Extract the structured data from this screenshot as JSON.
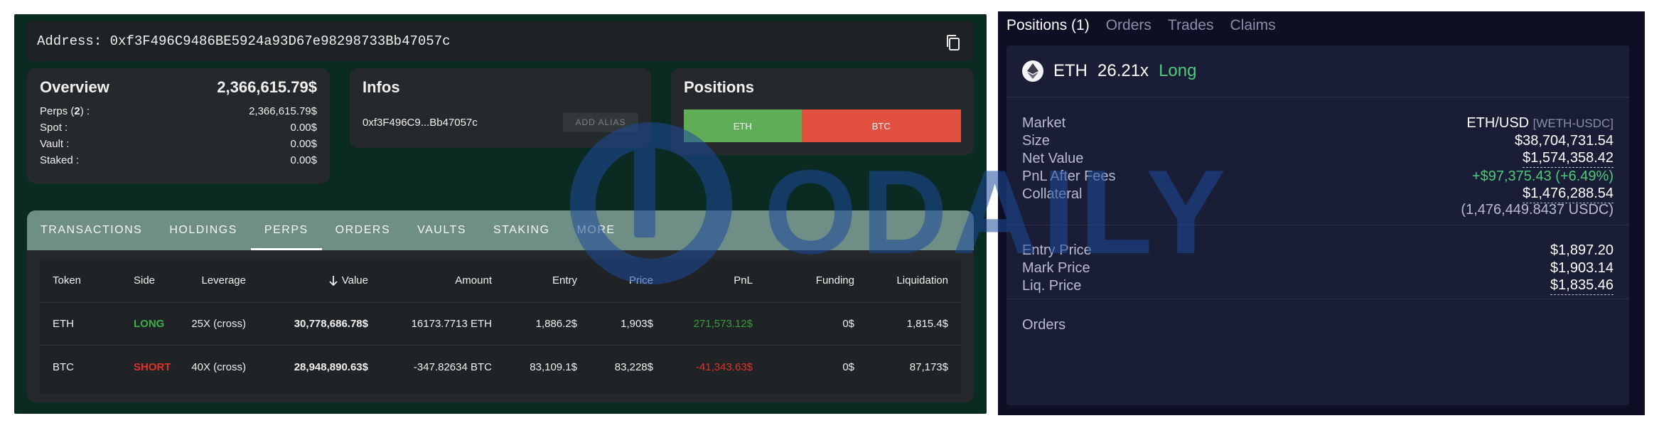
{
  "left": {
    "address_label": "Address: 0xf3F496C9486BE5924a93D67e98298733Bb47057c",
    "copy_icon": "copy-icon",
    "overview": {
      "title": "Overview",
      "total": "2,366,615.79$",
      "rows": [
        {
          "label_pre": "Perps (",
          "label_count": "2",
          "label_post": ") :",
          "value": "2,366,615.79$"
        },
        {
          "label": "Spot :",
          "value": "0.00$"
        },
        {
          "label": "Vault :",
          "value": "0.00$"
        },
        {
          "label": "Staked :",
          "value": "0.00$"
        }
      ]
    },
    "infos": {
      "title": "Infos",
      "short_address": "0xf3F496C9...Bb47057c",
      "alias_button": "ADD ALIAS"
    },
    "positions": {
      "title": "Positions",
      "segments": [
        {
          "label": "ETH",
          "fraction": 0.4245,
          "color": "#5fad56"
        },
        {
          "label": "BTC",
          "fraction": 0.5755,
          "color": "#e2503f"
        }
      ]
    },
    "tabs": [
      "TRANSACTIONS",
      "HOLDINGS",
      "PERPS",
      "ORDERS",
      "VAULTS",
      "STAKING",
      "MORE"
    ],
    "active_tab": "PERPS",
    "table": {
      "headers": [
        "Token",
        "Side",
        "Leverage",
        "Value",
        "Amount",
        "Entry",
        "Price",
        "PnL",
        "Funding",
        "Liquidation"
      ],
      "rows": [
        {
          "token": "ETH",
          "side": "LONG",
          "leverage": "25X (cross)",
          "value": "30,778,686.78$",
          "amount": "16173.7713 ETH",
          "entry": "1,886.2$",
          "price": "1,903$",
          "pnl": "271,573.12$",
          "funding": "0$",
          "liquidation": "1,815.4$"
        },
        {
          "token": "BTC",
          "side": "SHORT",
          "leverage": "40X (cross)",
          "value": "28,948,890.63$",
          "amount": "-347.82634 BTC",
          "entry": "83,109.1$",
          "price": "83,228$",
          "pnl": "-41,343.63$",
          "funding": "0$",
          "liquidation": "87,173$"
        }
      ]
    }
  },
  "watermark": "ODAILY",
  "right": {
    "tabs": [
      "Positions (1)",
      "Orders",
      "Trades",
      "Claims"
    ],
    "coin": "ETH",
    "leverage": "26.21x",
    "side": "Long",
    "market_label": "Market",
    "market_value": "ETH/USD",
    "market_sub": "[WETH-USDC]",
    "size_label": "Size",
    "size_value": "$38,704,731.54",
    "net_value_label": "Net Value",
    "net_value": "$1,574,358.42",
    "pnl_label": "PnL After Fees",
    "pnl_value": "+$97,375.43 (+6.49%)",
    "collateral_label": "Collateral",
    "collateral_value": "$1,476,288.54",
    "collateral_sub": "(1,476,449.8437 USDC)",
    "entry_label": "Entry Price",
    "entry_value": "$1,897.20",
    "mark_label": "Mark Price",
    "mark_value": "$1,903.14",
    "liq_label": "Liq. Price",
    "liq_value": "$1,835.46",
    "orders_label": "Orders"
  }
}
